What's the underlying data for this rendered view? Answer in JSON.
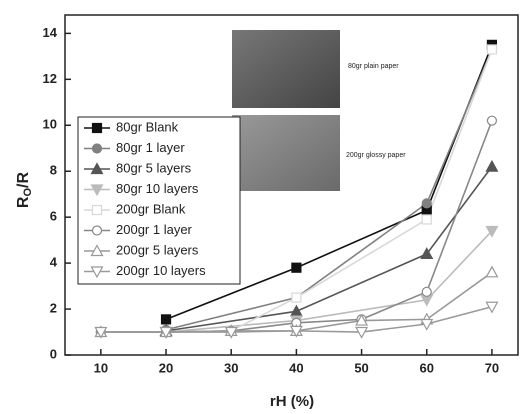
{
  "chart_data": {
    "type": "line",
    "xlabel": "rH (%)",
    "ylabel": [
      "R",
      "O",
      "/R"
    ],
    "xlim": [
      4.5,
      74
    ],
    "xticks": [
      10,
      20,
      30,
      40,
      50,
      60,
      70
    ],
    "ylim": [
      0,
      14.8
    ],
    "yticks": [
      0,
      2,
      4,
      6,
      8,
      10,
      12,
      14
    ],
    "legend": "upper-left",
    "images": [
      {
        "caption": "80gr plain paper"
      },
      {
        "caption": "200gr glossy paper"
      }
    ],
    "series": [
      {
        "name": "80gr Blank",
        "color": "#111111",
        "marker": "square",
        "filled": true,
        "x": [
          20,
          40,
          60,
          70
        ],
        "values": [
          1.55,
          3.8,
          6.3,
          13.5
        ]
      },
      {
        "name": "80gr 1 layer",
        "color": "#808080",
        "marker": "circle",
        "filled": true,
        "x": [
          20,
          40,
          60,
          70
        ],
        "values": [
          1.1,
          2.5,
          6.6,
          13.3
        ]
      },
      {
        "name": "80gr 5 layers",
        "color": "#555555",
        "marker": "triangle",
        "filled": true,
        "x": [
          20,
          40,
          60,
          70
        ],
        "values": [
          1.05,
          1.9,
          4.4,
          8.2
        ]
      },
      {
        "name": "80gr 10 layers",
        "color": "#bbbbbb",
        "marker": "down-triangle",
        "filled": true,
        "x": [
          20,
          40,
          60,
          70
        ],
        "values": [
          1.0,
          1.5,
          2.4,
          5.4
        ]
      },
      {
        "name": "200gr Blank",
        "color": "#d8d8d8",
        "marker": "square",
        "filled": false,
        "x": [
          10,
          20,
          30,
          40,
          60,
          70
        ],
        "values": [
          1.0,
          1.0,
          1.05,
          2.5,
          5.9,
          13.3
        ]
      },
      {
        "name": "200gr 1 layer",
        "color": "#888888",
        "marker": "circle",
        "filled": false,
        "x": [
          10,
          20,
          30,
          40,
          50,
          60,
          70
        ],
        "values": [
          1.0,
          1.0,
          1.05,
          1.4,
          1.55,
          2.75,
          10.2
        ]
      },
      {
        "name": "200gr 5 layers",
        "color": "#999999",
        "marker": "triangle",
        "filled": false,
        "x": [
          10,
          20,
          30,
          40,
          50,
          60,
          70
        ],
        "values": [
          1.0,
          1.0,
          1.05,
          1.05,
          1.5,
          1.55,
          3.6
        ]
      },
      {
        "name": "200gr 10 layers",
        "color": "#999999",
        "marker": "down-triangle",
        "filled": false,
        "x": [
          10,
          20,
          30,
          40,
          50,
          60,
          70
        ],
        "values": [
          1.0,
          1.0,
          1.0,
          1.05,
          1.0,
          1.35,
          2.1
        ]
      }
    ]
  }
}
